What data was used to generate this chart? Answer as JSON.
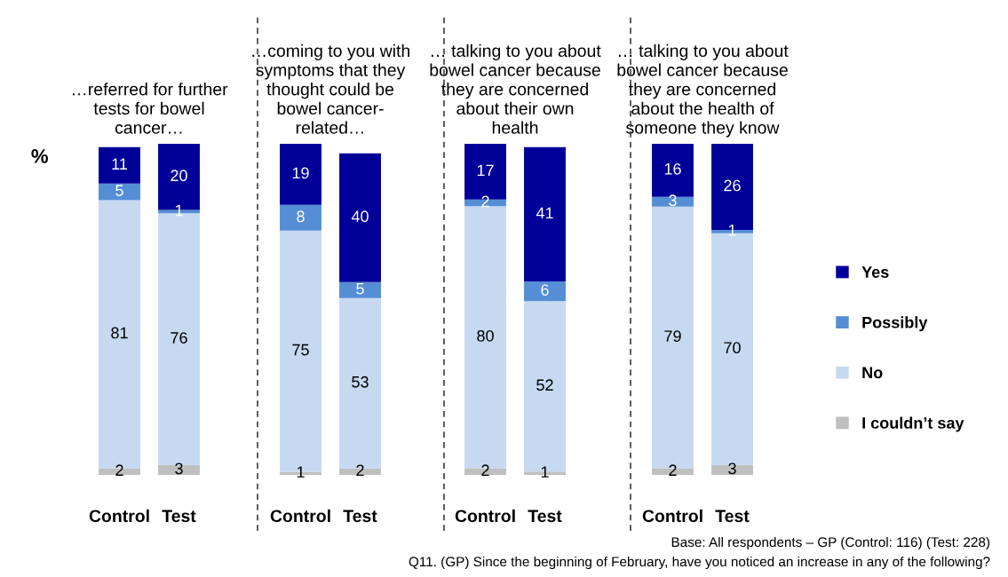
{
  "chart_data": [
    {
      "type": "bar",
      "stacked": true,
      "title": "…referred for further\ntests for bowel\ncancer…",
      "ylabel": "%",
      "categories": [
        "Control",
        "Test"
      ],
      "data_labels": true,
      "tick_labels": "x",
      "legend": "right",
      "series": [
        {
          "name": "I couldn’t say",
          "color": "#bfbfbf",
          "values": [
            2,
            3
          ]
        },
        {
          "name": "No",
          "color": "#c6d9f1",
          "values": [
            81,
            76
          ]
        },
        {
          "name": "Possibly",
          "color": "#558ed5",
          "values": [
            5,
            1
          ]
        },
        {
          "name": "Yes",
          "color": "#000099",
          "values": [
            11,
            20
          ]
        }
      ]
    },
    {
      "type": "bar",
      "stacked": true,
      "title": "…coming to you with\nsymptoms that they\nthought could be\nbowel cancer-\nrelated…",
      "categories": [
        "Control",
        "Test"
      ],
      "data_labels": true,
      "tick_labels": "x",
      "series": [
        {
          "color": "#bfbfbf",
          "values": [
            1,
            2
          ]
        },
        {
          "color": "#c6d9f1",
          "values": [
            75,
            53
          ]
        },
        {
          "color": "#558ed5",
          "values": [
            8,
            5
          ]
        },
        {
          "color": "#000099",
          "values": [
            19,
            40
          ]
        }
      ]
    },
    {
      "type": "bar",
      "stacked": true,
      "title": "… talking to you about\nbowel cancer because\nthey are concerned\nabout their own\nhealth",
      "categories": [
        "Control",
        "Test"
      ],
      "data_labels": true,
      "tick_labels": "x",
      "series": [
        {
          "color": "#bfbfbf",
          "values": [
            2,
            1
          ]
        },
        {
          "color": "#c6d9f1",
          "values": [
            80,
            52
          ]
        },
        {
          "color": "#558ed5",
          "values": [
            2,
            6
          ]
        },
        {
          "color": "#000099",
          "values": [
            17,
            41
          ]
        }
      ]
    },
    {
      "type": "bar",
      "stacked": true,
      "title": "… talking to you about\nbowel cancer because\nthey are concerned\nabout the health of\nsomeone they know",
      "categories": [
        "Control",
        "Test"
      ],
      "data_labels": true,
      "tick_labels": "x",
      "annotations": [
        "Base: All respondents – GP (Control: 116) (Test: 228)",
        "Q11. (GP) Since the beginning of February, have you noticed an increase in any of the following?"
      ],
      "series": [
        {
          "color": "#bfbfbf",
          "values": [
            2,
            3
          ]
        },
        {
          "color": "#c6d9f1",
          "values": [
            79,
            70
          ]
        },
        {
          "color": "#558ed5",
          "values": [
            3,
            1
          ]
        },
        {
          "color": "#000099",
          "values": [
            16,
            26
          ]
        }
      ]
    }
  ]
}
